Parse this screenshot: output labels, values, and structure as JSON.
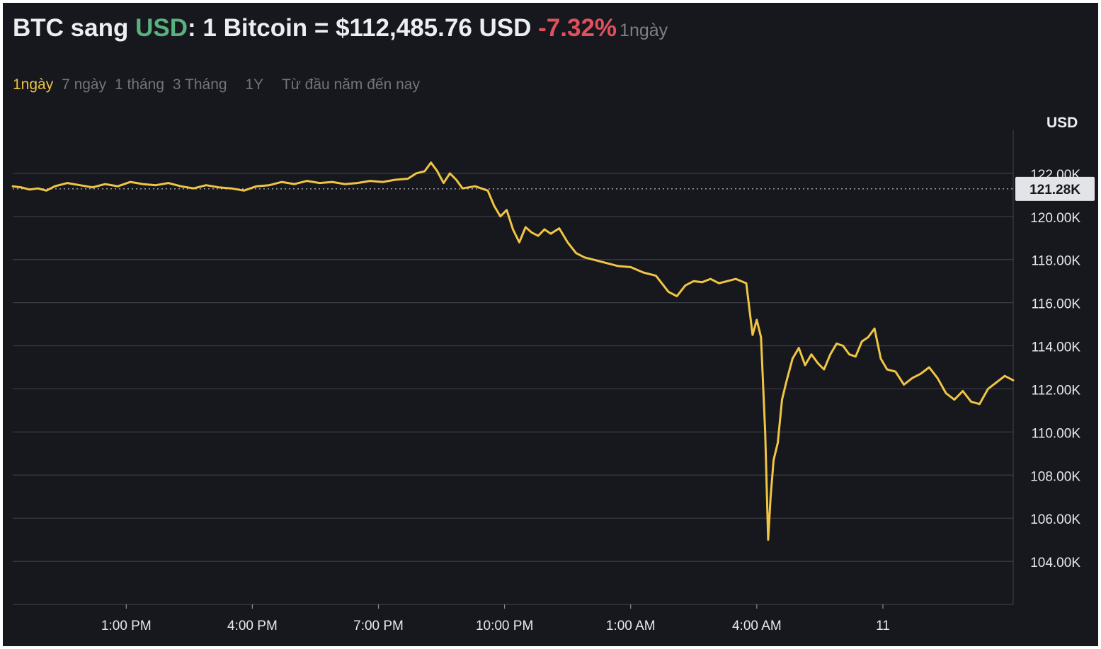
{
  "header": {
    "base": "BTC",
    "word_to": "sang",
    "quote": "USD",
    "rate_text": ": 1 Bitcoin = $112,485.76 USD",
    "change": "-7.32%",
    "period": "1ngày"
  },
  "ranges": [
    {
      "label": "1ngày",
      "active": true
    },
    {
      "label": "7 ngày",
      "active": false
    },
    {
      "label": "1 tháng",
      "active": false
    },
    {
      "label": "3 Tháng",
      "active": false
    },
    {
      "label": "1Y",
      "active": false
    },
    {
      "label": "Từ đầu năm đến nay",
      "active": false
    }
  ],
  "colors": {
    "background": "#17181d",
    "line": "#f0c544",
    "grid": "#3b3d44",
    "quote_accent": "#58b27e",
    "negative": "#e0515d",
    "range_active": "#e9c14a"
  },
  "chart_data": {
    "type": "line",
    "title": "",
    "xlabel": "",
    "ylabel": "USD",
    "ylim": [
      102000,
      124000
    ],
    "xlim": [
      -0.7,
      23.1
    ],
    "x_ticks": [
      {
        "pos": 2,
        "label": "1:00 PM"
      },
      {
        "pos": 5,
        "label": "4:00 PM"
      },
      {
        "pos": 8,
        "label": "7:00 PM"
      },
      {
        "pos": 11,
        "label": "10:00 PM"
      },
      {
        "pos": 14,
        "label": "1:00 AM"
      },
      {
        "pos": 17,
        "label": "4:00 AM"
      },
      {
        "pos": 20,
        "label": "11"
      }
    ],
    "y_ticks": [
      {
        "value": 104000,
        "label": "104.00K"
      },
      {
        "value": 106000,
        "label": "106.00K"
      },
      {
        "value": 108000,
        "label": "108.00K"
      },
      {
        "value": 110000,
        "label": "110.00K"
      },
      {
        "value": 112000,
        "label": "112.00K"
      },
      {
        "value": 114000,
        "label": "114.00K"
      },
      {
        "value": 116000,
        "label": "116.00K"
      },
      {
        "value": 118000,
        "label": "118.00K"
      },
      {
        "value": 120000,
        "label": "120.00K"
      },
      {
        "value": 122000,
        "label": "122.00K"
      }
    ],
    "reference": {
      "value": 121280,
      "label": "121.28K"
    },
    "grid": true,
    "series": [
      {
        "x": [
          -0.7,
          -0.5,
          -0.3,
          -0.1,
          0.1,
          0.3,
          0.6,
          0.9,
          1.2,
          1.5,
          1.8,
          2.1,
          2.4,
          2.7,
          3.0,
          3.3,
          3.6,
          3.9,
          4.2,
          4.5,
          4.8,
          5.1,
          5.4,
          5.7,
          6.0,
          6.3,
          6.6,
          6.9,
          7.2,
          7.5,
          7.8,
          8.1,
          8.4,
          8.7,
          8.9,
          9.1,
          9.25,
          9.4,
          9.55,
          9.7,
          9.85,
          10.0,
          10.3,
          10.6,
          10.75,
          10.9,
          11.05,
          11.2,
          11.35,
          11.5,
          11.65,
          11.8,
          11.95,
          12.1,
          12.3,
          12.5,
          12.7,
          12.9,
          13.1,
          13.4,
          13.7,
          14.0,
          14.3,
          14.6,
          14.9,
          15.1,
          15.3,
          15.5,
          15.7,
          15.9,
          16.1,
          16.3,
          16.5,
          16.75,
          16.9,
          17.0,
          17.1,
          17.2,
          17.27,
          17.33,
          17.4,
          17.5,
          17.6,
          17.7,
          17.85,
          18.0,
          18.15,
          18.3,
          18.45,
          18.6,
          18.75,
          18.9,
          19.05,
          19.2,
          19.35,
          19.5,
          19.65,
          19.8,
          19.95,
          20.1,
          20.3,
          20.5,
          20.7,
          20.9,
          21.1,
          21.3,
          21.5,
          21.7,
          21.9,
          22.1,
          22.3,
          22.5,
          22.7,
          22.9,
          23.1
        ],
        "y": [
          121400,
          121350,
          121250,
          121300,
          121200,
          121400,
          121550,
          121450,
          121350,
          121500,
          121400,
          121600,
          121500,
          121450,
          121550,
          121400,
          121300,
          121450,
          121350,
          121300,
          121200,
          121400,
          121450,
          121600,
          121500,
          121650,
          121550,
          121600,
          121500,
          121550,
          121650,
          121600,
          121700,
          121750,
          122000,
          122100,
          122500,
          122100,
          121550,
          122000,
          121700,
          121300,
          121400,
          121200,
          120500,
          120000,
          120300,
          119400,
          118800,
          119500,
          119250,
          119100,
          119400,
          119200,
          119450,
          118800,
          118300,
          118100,
          118000,
          117850,
          117700,
          117650,
          117400,
          117250,
          116500,
          116300,
          116800,
          117000,
          116950,
          117100,
          116900,
          117000,
          117100,
          116900,
          114500,
          115200,
          114400,
          110000,
          105000,
          107000,
          108700,
          109500,
          111500,
          112300,
          113400,
          113900,
          113100,
          113600,
          113200,
          112900,
          113600,
          114100,
          114000,
          113600,
          113500,
          114200,
          114400,
          114800,
          113400,
          112900,
          112800,
          112200,
          112500,
          112700,
          113000,
          112500,
          111800,
          111500,
          111900,
          111400,
          111300,
          112000,
          112300,
          112600,
          112400
        ],
        "color": "#f0c544"
      }
    ]
  }
}
